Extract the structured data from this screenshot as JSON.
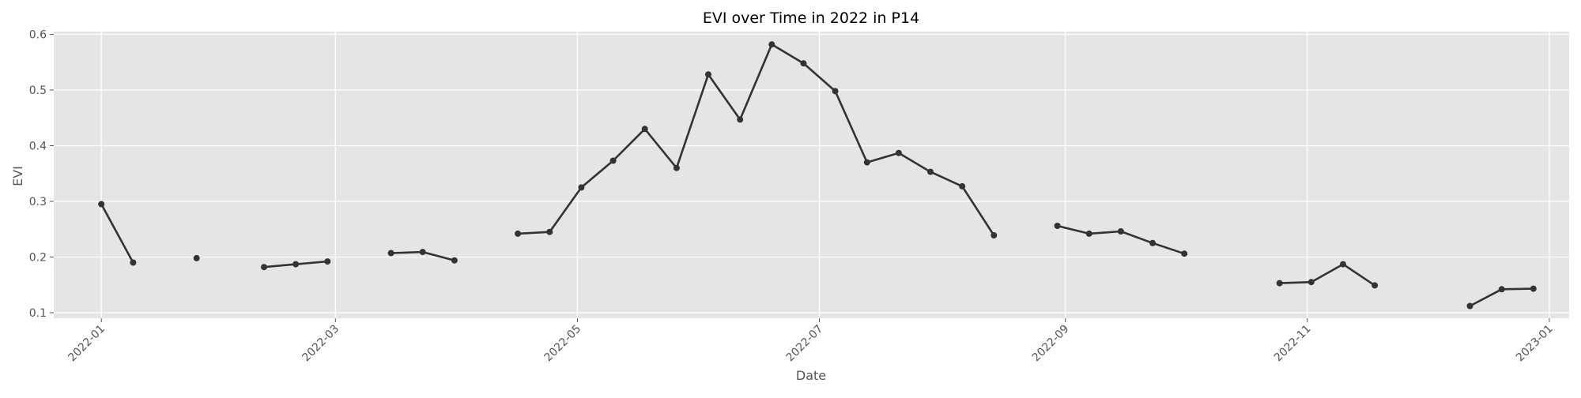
{
  "chart_data": {
    "type": "line",
    "title": "EVI over Time in 2022 in P14",
    "xlabel": "Date",
    "ylabel": "EVI",
    "x_axis_type": "date",
    "xlim": [
      "2021-12-20",
      "2023-01-06"
    ],
    "ylim": [
      0.09,
      0.605
    ],
    "x_ticks": [
      "2022-01-01",
      "2022-03-01",
      "2022-05-01",
      "2022-07-01",
      "2022-09-01",
      "2022-11-01",
      "2023-01-01"
    ],
    "x_tick_labels": [
      "2022-01",
      "2022-03",
      "2022-05",
      "2022-07",
      "2022-09",
      "2022-11",
      "2023-01"
    ],
    "y_ticks": [
      0.1,
      0.2,
      0.3,
      0.4,
      0.5,
      0.6
    ],
    "y_tick_labels": [
      "0.1",
      "0.2",
      "0.3",
      "0.4",
      "0.5",
      "0.6"
    ],
    "grid": true,
    "legend": "none",
    "colors": {
      "line": "#333333",
      "plot_bg": "#e5e5e5",
      "grid": "#ffffff",
      "text": "#555555",
      "title": "#000000"
    },
    "series": [
      {
        "points": [
          {
            "x": "2022-01-01",
            "y": 0.295
          },
          {
            "x": "2022-01-09",
            "y": 0.19
          },
          {
            "x": "2022-01-25",
            "y": null
          },
          {
            "x": "2022-01-25",
            "y": 0.198
          },
          {
            "x": "2022-02-10",
            "y": null
          },
          {
            "x": "2022-02-11",
            "y": 0.182
          },
          {
            "x": "2022-02-19",
            "y": 0.187
          },
          {
            "x": "2022-02-27",
            "y": 0.192
          },
          {
            "x": "2022-03-07",
            "y": null
          },
          {
            "x": "2022-03-15",
            "y": 0.207
          },
          {
            "x": "2022-03-23",
            "y": 0.209
          },
          {
            "x": "2022-03-31",
            "y": 0.194
          },
          {
            "x": "2022-04-08",
            "y": null
          },
          {
            "x": "2022-04-16",
            "y": 0.242
          },
          {
            "x": "2022-04-24",
            "y": 0.245
          },
          {
            "x": "2022-05-02",
            "y": 0.325
          },
          {
            "x": "2022-05-10",
            "y": 0.373
          },
          {
            "x": "2022-05-18",
            "y": 0.43
          },
          {
            "x": "2022-05-26",
            "y": 0.36
          },
          {
            "x": "2022-06-03",
            "y": 0.528
          },
          {
            "x": "2022-06-11",
            "y": 0.447
          },
          {
            "x": "2022-06-19",
            "y": 0.582
          },
          {
            "x": "2022-06-27",
            "y": 0.548
          },
          {
            "x": "2022-07-05",
            "y": 0.498
          },
          {
            "x": "2022-07-13",
            "y": 0.37
          },
          {
            "x": "2022-07-21",
            "y": 0.387
          },
          {
            "x": "2022-07-29",
            "y": 0.353
          },
          {
            "x": "2022-08-06",
            "y": 0.327
          },
          {
            "x": "2022-08-14",
            "y": 0.239
          },
          {
            "x": "2022-08-22",
            "y": null
          },
          {
            "x": "2022-08-30",
            "y": 0.256
          },
          {
            "x": "2022-09-07",
            "y": 0.242
          },
          {
            "x": "2022-09-15",
            "y": 0.246
          },
          {
            "x": "2022-09-23",
            "y": 0.225
          },
          {
            "x": "2022-10-01",
            "y": 0.206
          },
          {
            "x": "2022-10-09",
            "y": null
          },
          {
            "x": "2022-10-25",
            "y": 0.153
          },
          {
            "x": "2022-11-02",
            "y": 0.155
          },
          {
            "x": "2022-11-10",
            "y": 0.187
          },
          {
            "x": "2022-11-18",
            "y": 0.149
          },
          {
            "x": "2022-11-26",
            "y": null
          },
          {
            "x": "2022-12-12",
            "y": 0.112
          },
          {
            "x": "2022-12-20",
            "y": 0.142
          },
          {
            "x": "2022-12-28",
            "y": 0.143
          }
        ]
      }
    ]
  }
}
